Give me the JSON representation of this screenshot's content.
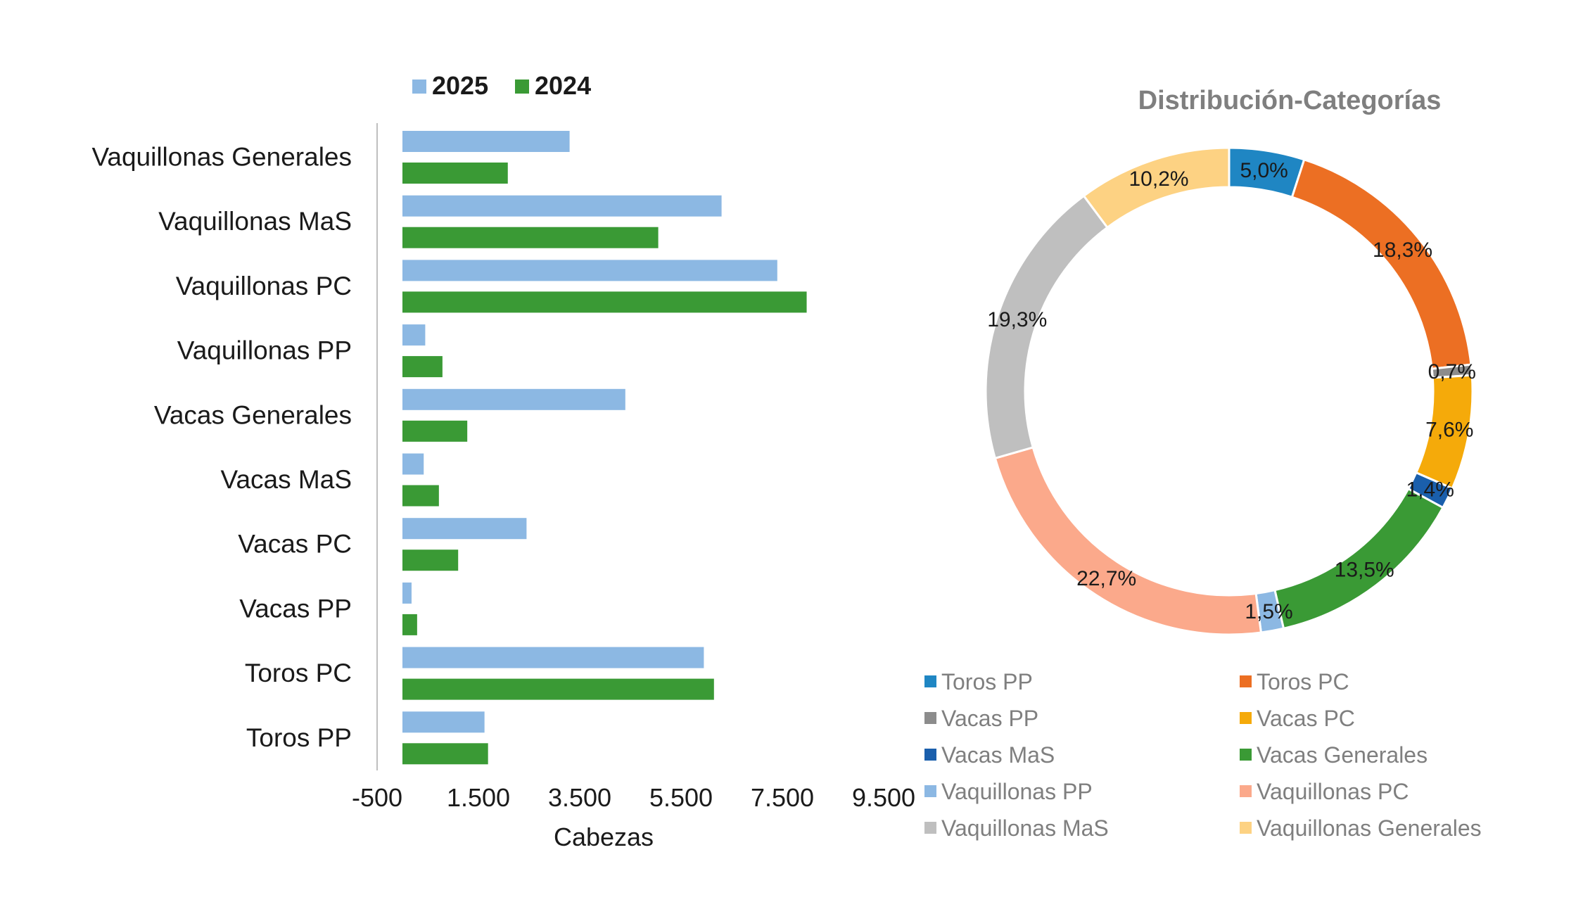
{
  "chart_data": [
    {
      "type": "bar",
      "orientation": "horizontal",
      "title": "",
      "xlabel": "Cabezas",
      "ylabel": "",
      "xlim": [
        -500,
        10000
      ],
      "x_ticks": [
        -500,
        1500,
        3500,
        5500,
        7500,
        9500
      ],
      "x_tick_labels": [
        "-500",
        "1.500",
        "3.500",
        "5.500",
        "7.500",
        "9.500"
      ],
      "categories": [
        "Vaquillonas Generales",
        "Vaquillonas MaS",
        "Vaquillonas PC",
        "Vaquillonas PP",
        "Vacas Generales",
        "Vacas MaS",
        "Vacas PC",
        "Vacas PP",
        "Toros PC",
        "Toros PP"
      ],
      "legend_position": "top",
      "series": [
        {
          "name": "2025",
          "color": "#8cb8e3",
          "values": [
            3300,
            6300,
            7400,
            450,
            4400,
            420,
            2450,
            180,
            5950,
            1620
          ]
        },
        {
          "name": "2024",
          "color": "#3a9a35",
          "values": [
            2080,
            5050,
            7980,
            790,
            1280,
            720,
            1100,
            290,
            6150,
            1690
          ]
        }
      ]
    },
    {
      "type": "pie",
      "variant": "donut",
      "title": "Distribución-Categorías",
      "legend_position": "bottom",
      "labels": [
        "Toros PP",
        "Toros PC",
        "Vacas PP",
        "Vacas PC",
        "Vacas MaS",
        "Vacas Generales",
        "Vaquillonas PP",
        "Vaquillonas PC",
        "Vaquillonas MaS",
        "Vaquillonas Generales"
      ],
      "values": [
        5.0,
        18.3,
        0.7,
        7.6,
        1.4,
        13.5,
        1.5,
        22.7,
        19.3,
        10.2
      ],
      "value_labels": [
        "5,0%",
        "18,3%",
        "0,7%",
        "7,6%",
        "1,4%",
        "13,5%",
        "1,5%",
        "22,7%",
        "19,3%",
        "10,2%"
      ],
      "colors": [
        "#1f86c3",
        "#ec6f23",
        "#8c8c8c",
        "#f5aa0a",
        "#1a5fac",
        "#3a9a35",
        "#8cb8e3",
        "#fba98b",
        "#bfbfbf",
        "#fdd283"
      ]
    }
  ]
}
